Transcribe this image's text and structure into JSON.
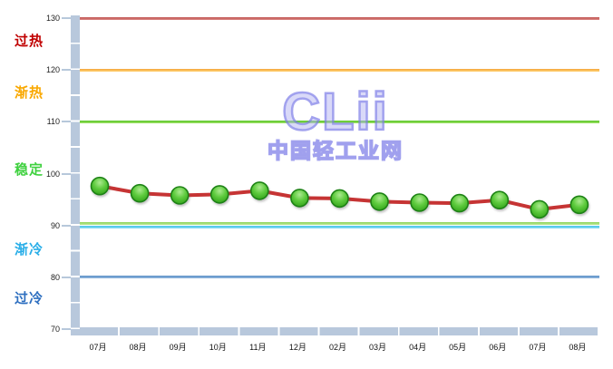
{
  "watermark": {
    "logo_text": "CLii",
    "site_name": "中国轻工业网"
  },
  "chart_data": {
    "type": "line",
    "title": "",
    "xlabel": "",
    "ylabel": "",
    "categories": [
      "07月",
      "08月",
      "09月",
      "10月",
      "11月",
      "12月",
      "02月",
      "03月",
      "04月",
      "05月",
      "06月",
      "07月",
      "08月"
    ],
    "values": [
      97.6,
      96.2,
      95.8,
      96.0,
      96.7,
      95.3,
      95.2,
      94.6,
      94.4,
      94.3,
      94.9,
      93.1,
      94.0
    ],
    "ylim": [
      70,
      130
    ],
    "yticks": [
      130,
      120,
      110,
      100,
      90,
      80,
      70
    ],
    "grid": false,
    "legend": "none",
    "line_color": "#C63434",
    "marker_fill_color": "#4CBF2F",
    "marker_border_color": "#1F8212",
    "axis_band_color": "#B8C8DC",
    "zones": [
      {
        "label": "过热",
        "label_color": "#C00000",
        "range": [
          120,
          130
        ]
      },
      {
        "label": "渐热",
        "label_color": "#F9A800",
        "range": [
          110,
          120
        ]
      },
      {
        "label": "稳定",
        "label_color": "#3FD13F",
        "range": [
          90,
          110
        ]
      },
      {
        "label": "渐冷",
        "label_color": "#29AEE8",
        "range": [
          80,
          90
        ]
      },
      {
        "label": "过冷",
        "label_color": "#2E6FC0",
        "range": [
          70,
          80
        ]
      }
    ],
    "reference_lines": [
      {
        "value": 130,
        "color_top": "#C0504D",
        "color_bottom": "#DA8B88"
      },
      {
        "value": 120,
        "color_top": "#F5A63C",
        "color_bottom": "#FFD273"
      },
      {
        "value": 110,
        "color_top": "#54C322",
        "color_bottom": "#A2E36B"
      },
      {
        "value": 90.3,
        "color_top": "#8FD45B",
        "color_bottom": "#BCE795"
      },
      {
        "value": 89.6,
        "color_top": "#45C4E8",
        "color_bottom": "#8FDEF5"
      },
      {
        "value": 80,
        "color_top": "#5B8FC6",
        "color_bottom": "#93B8DE"
      }
    ]
  }
}
